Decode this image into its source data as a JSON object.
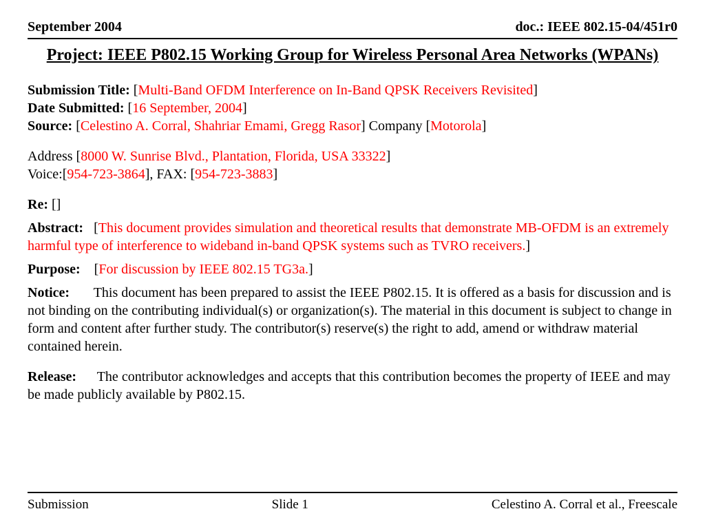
{
  "header": {
    "date": "September 2004",
    "docref": "doc.: IEEE 802.15-04/451r0"
  },
  "title": "Project: IEEE P802.15 Working Group for Wireless Personal Area Networks (WPANs)",
  "submission": {
    "title_label": "Submission Title:",
    "title_value": "Multi-Band OFDM Interference on In-Band QPSK Receivers Revisited",
    "date_label": "Date Submitted:",
    "date_value": "16 September, 2004",
    "source_label": "Source:",
    "source_value": "Celestino A. Corral, Shahriar Emami, Gregg Rasor",
    "company_label": "Company",
    "company_value": "Motorola"
  },
  "address": {
    "label": "Address",
    "value": "8000 W. Sunrise Blvd., Plantation, Florida, USA  33322",
    "voice_label": "Voice:",
    "voice_value": "954-723-3864",
    "fax_label": "FAX:",
    "fax_value": "954-723-3883"
  },
  "re": {
    "label": "Re:"
  },
  "abstract": {
    "label": "Abstract:",
    "value": "This document provides simulation and theoretical results that demonstrate MB-OFDM is an extremely harmful type of interference to wideband in-band QPSK systems such as TVRO receivers."
  },
  "purpose": {
    "label": "Purpose:",
    "value": "For discussion by IEEE 802.15 TG3a."
  },
  "notice": {
    "label": "Notice:",
    "value": "This document has been prepared to assist the IEEE P802.15.  It is offered as a basis for discussion and is not binding on the contributing individual(s) or organization(s). The material in this document is subject to change in form and content after further study. The contributor(s) reserve(s) the right to add, amend or withdraw material contained herein."
  },
  "release": {
    "label": "Release:",
    "value": "The contributor acknowledges and accepts that this contribution becomes the property of IEEE and may be made publicly available by P802.15."
  },
  "footer": {
    "left": "Submission",
    "center": "Slide 1",
    "right": "Celestino A. Corral et al., Freescale"
  },
  "colors": {
    "highlight": "#ff0000",
    "text": "#000000",
    "background": "#ffffff"
  }
}
